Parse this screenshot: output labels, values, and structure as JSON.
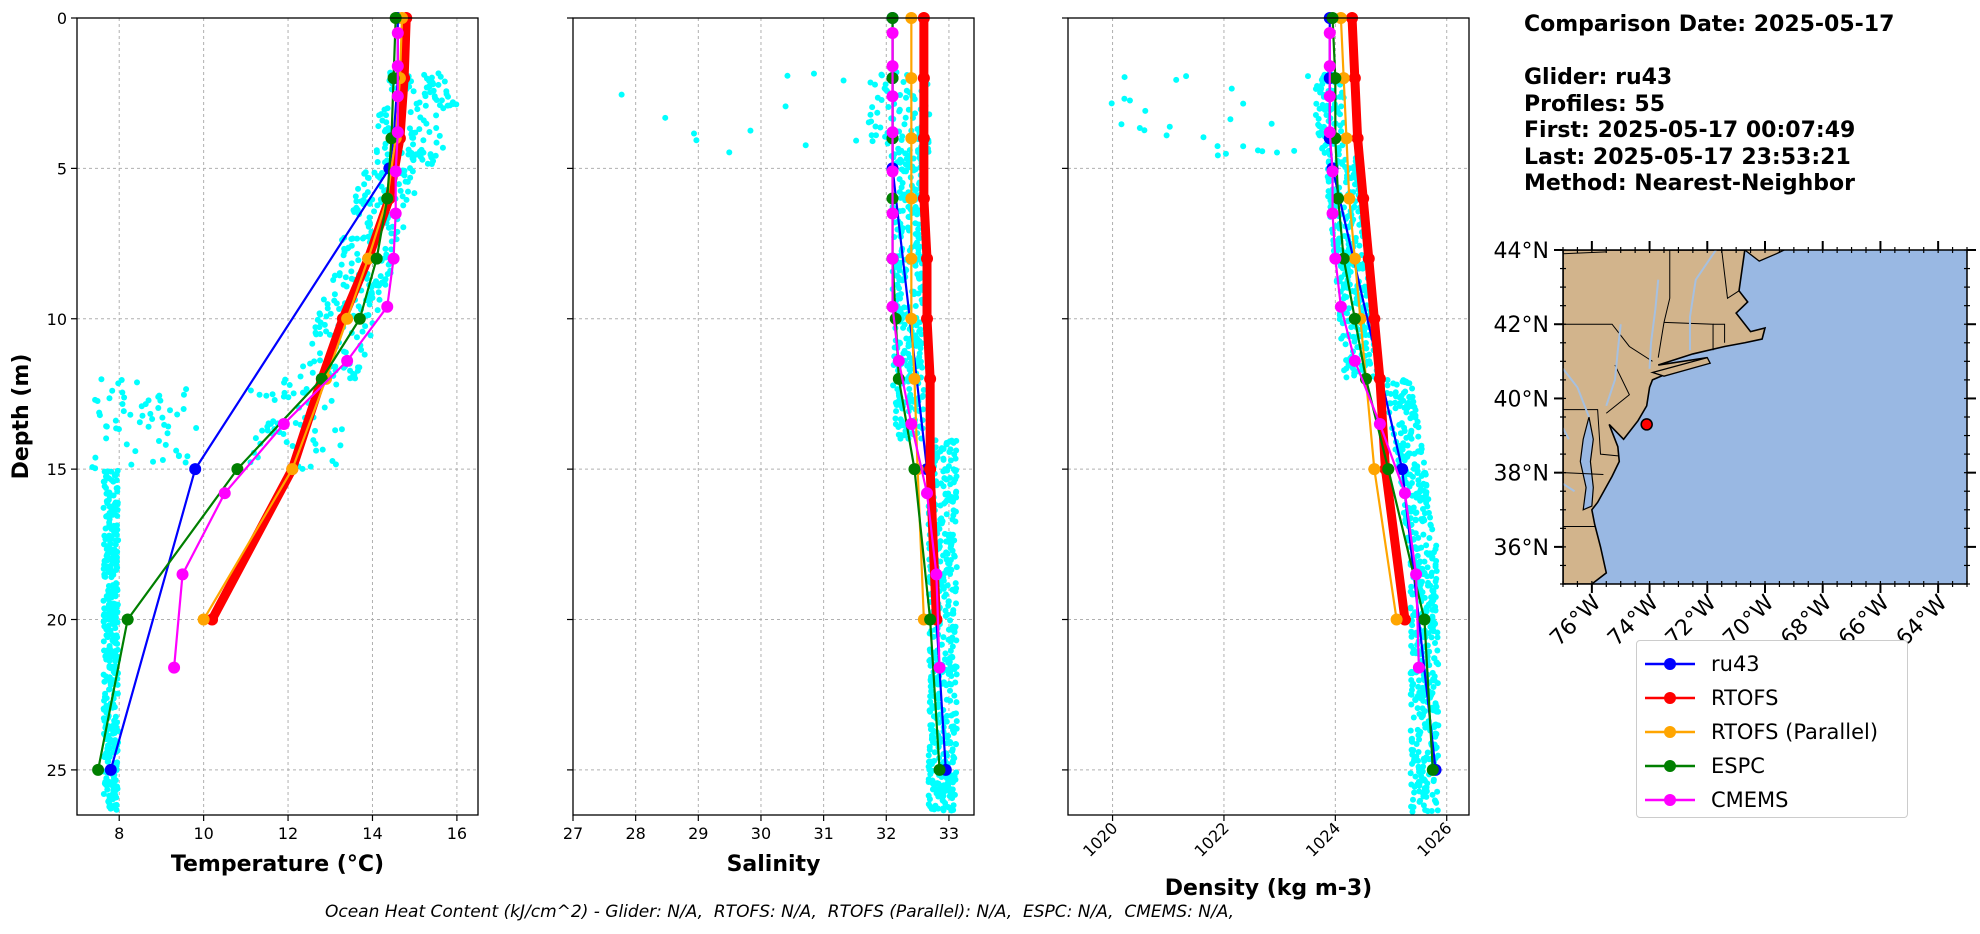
{
  "info": {
    "date_line": "Comparison Date: 2025-05-17",
    "glider_line": "Glider: ru43",
    "profiles_line": "Profiles: 55",
    "first_line": "First: 2025-05-17 00:07:49",
    "last_line": "Last: 2025-05-17 23:53:21",
    "method_line": "Method: Nearest-Neighbor"
  },
  "footnote": "Ocean Heat Content (kJ/cm^2) - Glider: N/A,  RTOFS: N/A,  RTOFS (Parallel): N/A,  ESPC: N/A,  CMEMS: N/A,",
  "legend": [
    "ru43",
    "RTOFS",
    "RTOFS (Parallel)",
    "ESPC",
    "CMEMS"
  ],
  "colors": {
    "ru43": "#0000ff",
    "RTOFS": "#ff0000",
    "RTOFS (Parallel)": "#ffa500",
    "ESPC": "#007f00",
    "CMEMS": "#ff00ff",
    "glider_points": "#00ffff",
    "land": "#d2b48c",
    "ocean": "#99b8e3"
  },
  "chart_data": [
    {
      "type": "line",
      "xlabel": "Temperature (°C)",
      "ylabel": "Depth (m)",
      "xlim": [
        7,
        16.5
      ],
      "ylim": [
        26.5,
        0
      ],
      "x_ticks": [
        8,
        10,
        12,
        14,
        16
      ],
      "y_ticks": [
        0,
        5,
        10,
        15,
        20,
        25
      ],
      "grid": true,
      "series": [
        {
          "name": "ru43",
          "depth": [
            0,
            2,
            4,
            5,
            15,
            25
          ],
          "values": [
            14.6,
            14.6,
            14.5,
            14.4,
            9.8,
            7.8
          ]
        },
        {
          "name": "RTOFS",
          "depth": [
            0,
            2,
            4,
            6,
            8,
            10,
            12,
            15,
            20
          ],
          "values": [
            14.8,
            14.75,
            14.65,
            14.4,
            13.9,
            13.3,
            12.8,
            12.1,
            10.2
          ]
        },
        {
          "name": "RTOFS (Parallel)",
          "depth": [
            0,
            2,
            4,
            6,
            8,
            10,
            12,
            15,
            20
          ],
          "values": [
            14.7,
            14.65,
            14.55,
            14.35,
            13.9,
            13.4,
            12.9,
            12.1,
            10.0
          ]
        },
        {
          "name": "ESPC",
          "depth": [
            0,
            2,
            4,
            6,
            8,
            10,
            12,
            15,
            20,
            25
          ],
          "values": [
            14.55,
            14.5,
            14.45,
            14.35,
            14.1,
            13.7,
            12.8,
            10.8,
            8.2,
            7.5
          ]
        },
        {
          "name": "CMEMS",
          "depth": [
            0.5,
            1.6,
            2.6,
            3.8,
            5.1,
            6.5,
            8.0,
            9.6,
            11.4,
            13.5,
            15.8,
            18.5,
            21.6
          ],
          "values": [
            14.6,
            14.6,
            14.6,
            14.6,
            14.55,
            14.55,
            14.5,
            14.35,
            13.4,
            11.9,
            10.5,
            9.5,
            9.3
          ]
        }
      ]
    },
    {
      "type": "line",
      "xlabel": "Salinity",
      "xlim": [
        27,
        33.4
      ],
      "ylim": [
        26.5,
        0
      ],
      "x_ticks": [
        27,
        28,
        29,
        30,
        31,
        32,
        33
      ],
      "y_ticks": [
        0,
        5,
        10,
        15,
        20,
        25
      ],
      "grid": true,
      "series": [
        {
          "name": "ru43",
          "depth": [
            0,
            2,
            4,
            5,
            15,
            25
          ],
          "values": [
            32.1,
            32.1,
            32.1,
            32.1,
            32.65,
            32.95
          ]
        },
        {
          "name": "RTOFS",
          "depth": [
            0,
            2,
            4,
            6,
            8,
            10,
            12,
            15,
            20
          ],
          "values": [
            32.6,
            32.6,
            32.6,
            32.6,
            32.65,
            32.65,
            32.7,
            32.7,
            32.8
          ]
        },
        {
          "name": "RTOFS (Parallel)",
          "depth": [
            0,
            2,
            4,
            6,
            8,
            10,
            12,
            15,
            20
          ],
          "values": [
            32.4,
            32.4,
            32.4,
            32.4,
            32.4,
            32.4,
            32.45,
            32.5,
            32.6
          ]
        },
        {
          "name": "ESPC",
          "depth": [
            0,
            2,
            4,
            6,
            8,
            10,
            12,
            15,
            20,
            25
          ],
          "values": [
            32.1,
            32.1,
            32.1,
            32.1,
            32.1,
            32.15,
            32.2,
            32.45,
            32.7,
            32.85
          ]
        },
        {
          "name": "CMEMS",
          "depth": [
            0.5,
            1.6,
            2.6,
            3.8,
            5.1,
            6.5,
            8.0,
            9.6,
            11.4,
            13.5,
            15.8,
            18.5,
            21.6
          ],
          "values": [
            32.1,
            32.1,
            32.1,
            32.1,
            32.1,
            32.1,
            32.1,
            32.1,
            32.2,
            32.4,
            32.65,
            32.8,
            32.85
          ]
        }
      ]
    },
    {
      "type": "line",
      "xlabel": "Density (kg m-3)",
      "xlim": [
        1019.2,
        1026.4
      ],
      "ylim": [
        26.5,
        0
      ],
      "x_ticks": [
        1020,
        1022,
        1024,
        1026
      ],
      "y_ticks": [
        0,
        5,
        10,
        15,
        20,
        25
      ],
      "grid": true,
      "series": [
        {
          "name": "ru43",
          "depth": [
            0,
            2,
            4,
            5,
            15,
            25
          ],
          "values": [
            1023.9,
            1023.9,
            1023.9,
            1023.95,
            1025.2,
            1025.8
          ]
        },
        {
          "name": "RTOFS",
          "depth": [
            0,
            2,
            4,
            6,
            8,
            10,
            12,
            15,
            20
          ],
          "values": [
            1024.3,
            1024.35,
            1024.4,
            1024.5,
            1024.6,
            1024.7,
            1024.8,
            1024.9,
            1025.25
          ]
        },
        {
          "name": "RTOFS (Parallel)",
          "depth": [
            0,
            2,
            4,
            6,
            8,
            10,
            12,
            15,
            20
          ],
          "values": [
            1024.1,
            1024.15,
            1024.2,
            1024.25,
            1024.35,
            1024.45,
            1024.55,
            1024.7,
            1025.1
          ]
        },
        {
          "name": "ESPC",
          "depth": [
            0,
            2,
            4,
            6,
            8,
            10,
            12,
            15,
            20,
            25
          ],
          "values": [
            1023.95,
            1024.0,
            1024.0,
            1024.05,
            1024.15,
            1024.35,
            1024.55,
            1024.95,
            1025.6,
            1025.75
          ]
        },
        {
          "name": "CMEMS",
          "depth": [
            0.5,
            1.6,
            2.6,
            3.8,
            5.1,
            6.5,
            8.0,
            9.6,
            11.4,
            13.5,
            15.8,
            18.5,
            21.6
          ],
          "values": [
            1023.9,
            1023.9,
            1023.9,
            1023.9,
            1023.95,
            1023.95,
            1024.0,
            1024.1,
            1024.35,
            1024.8,
            1025.25,
            1025.45,
            1025.5
          ]
        }
      ]
    },
    {
      "type": "map",
      "lon_ticks": [
        "76°W",
        "74°W",
        "72°W",
        "70°W",
        "68°W",
        "66°W",
        "64°W"
      ],
      "lat_ticks": [
        "36°N",
        "38°N",
        "40°N",
        "42°N",
        "44°N"
      ],
      "lon_range": [
        -77,
        -63
      ],
      "lat_range": [
        35,
        44
      ],
      "glider_position": {
        "lon": -74.1,
        "lat": 39.3
      }
    }
  ]
}
